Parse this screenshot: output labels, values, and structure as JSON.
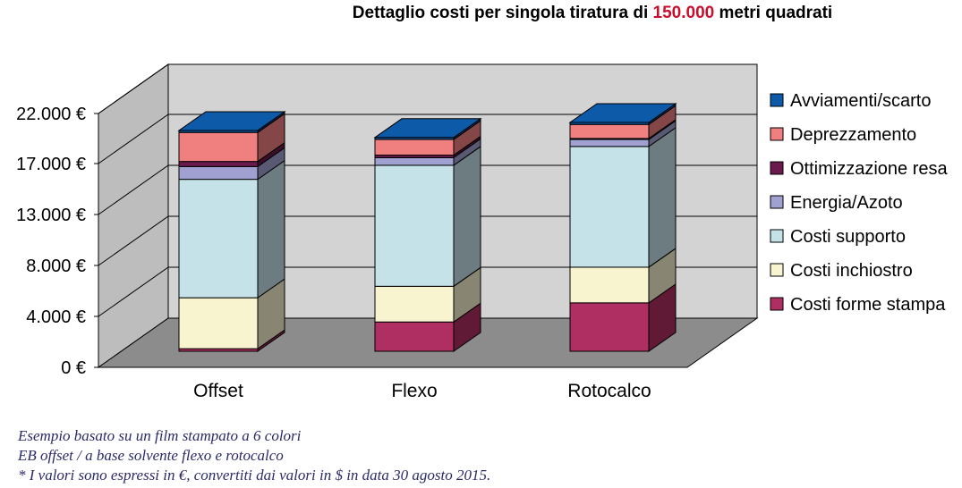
{
  "chart_data": {
    "type": "bar",
    "stacked": true,
    "three_d": true,
    "title_parts": [
      "Dettaglio costi per singola tiratura di ",
      "150.000",
      " metri quadrati"
    ],
    "title_accent_color": "#c8102e",
    "categories": [
      "Offset",
      "Flexo",
      "Rotocalco"
    ],
    "y_ticks": [
      0,
      4000,
      8000,
      13000,
      17000,
      22000
    ],
    "y_tick_labels": [
      "0 €",
      "4.000 €",
      "8.000 €",
      "13.000 €",
      "17.000 €",
      "22.000 €"
    ],
    "series": [
      {
        "name": "Costi forme stampa",
        "color": "#b02f63",
        "values": [
          200,
          2300,
          3800
        ]
      },
      {
        "name": "Costi inchiostro",
        "color": "#f7f4cf",
        "values": [
          4000,
          2800,
          2800
        ]
      },
      {
        "name": "Costi supporto",
        "color": "#c4e2e8",
        "values": [
          10300,
          10500,
          10500
        ]
      },
      {
        "name": "Energia/Azoto",
        "color": "#a1a1d1",
        "values": [
          1000,
          600,
          700
        ]
      },
      {
        "name": "Ottimizzazione resa",
        "color": "#6a1a4c",
        "values": [
          400,
          200,
          100
        ]
      },
      {
        "name": "Deprezzamento",
        "color": "#f08080",
        "values": [
          2600,
          1400,
          1400
        ]
      },
      {
        "name": "Avviamenti/scarto",
        "color": "#0d5aa8",
        "values": [
          200,
          200,
          200
        ]
      }
    ],
    "legend_position": "right",
    "grid": true
  },
  "notes": [
    "Esempio basato su un film stampato a 6 colori",
    "EB offset / a base solvente flexo e rotocalco",
    "* I valori sono espressi in €, convertiti dai valori in $ in data 30 agosto 2015."
  ]
}
